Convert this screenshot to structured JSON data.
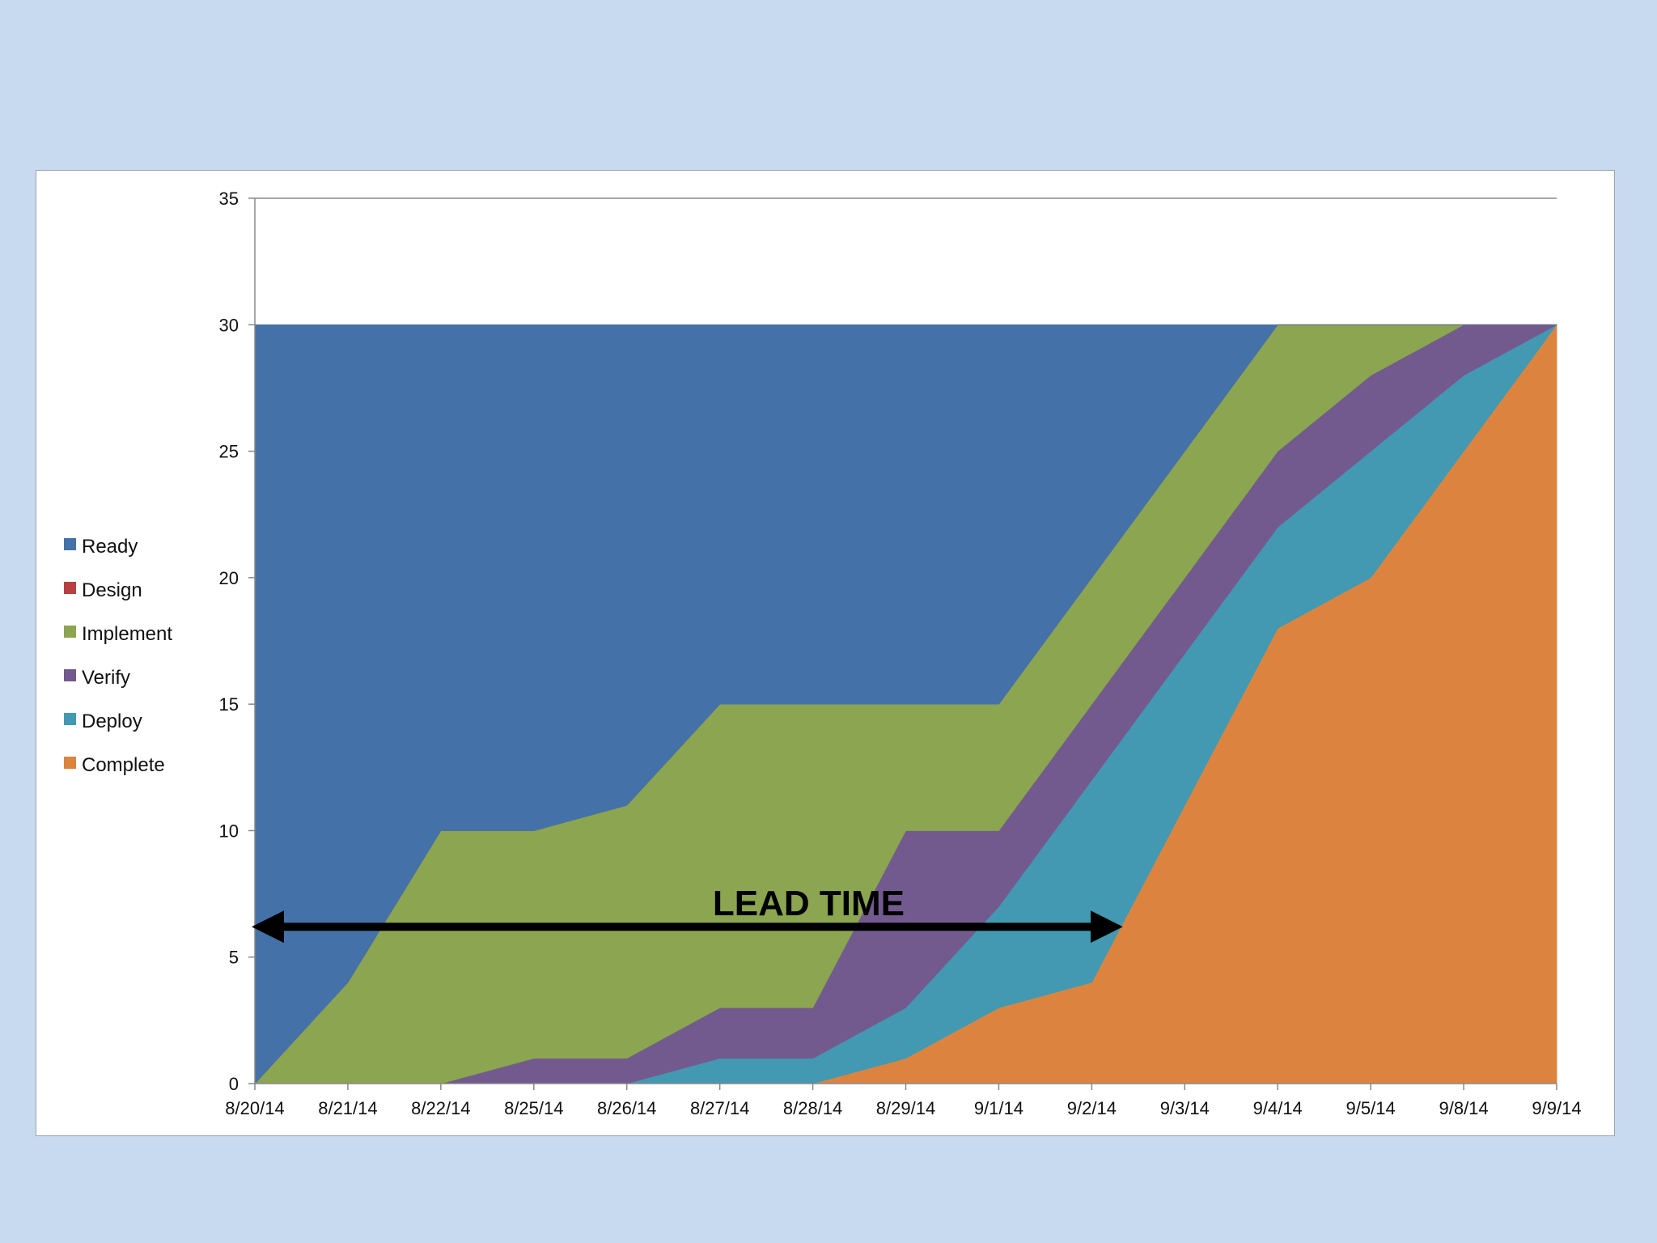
{
  "chart_data": {
    "type": "area",
    "stacked": true,
    "title": "",
    "xlabel": "",
    "ylabel": "",
    "categories": [
      "8/20/14",
      "8/21/14",
      "8/22/14",
      "8/25/14",
      "8/26/14",
      "8/27/14",
      "8/28/14",
      "8/29/14",
      "9/1/14",
      "9/2/14",
      "9/3/14",
      "9/4/14",
      "9/5/14",
      "9/8/14",
      "9/9/14"
    ],
    "ylim": [
      0,
      35
    ],
    "yticks": [
      0,
      5,
      10,
      15,
      20,
      25,
      30,
      35
    ],
    "series": [
      {
        "name": "Complete",
        "color": "#dc843f",
        "values": [
          0,
          0,
          0,
          0,
          0,
          0,
          0,
          1,
          3,
          4,
          11,
          18,
          20,
          25,
          30
        ]
      },
      {
        "name": "Deploy",
        "color": "#4299b1",
        "values": [
          0,
          0,
          0,
          0,
          0,
          1,
          1,
          2,
          4,
          8,
          6,
          4,
          5,
          3,
          0
        ]
      },
      {
        "name": "Verify",
        "color": "#735a8e",
        "values": [
          0,
          0,
          0,
          1,
          1,
          2,
          2,
          7,
          3,
          3,
          3,
          3,
          3,
          2,
          0
        ]
      },
      {
        "name": "Implement",
        "color": "#8ba551",
        "values": [
          0,
          4,
          10,
          9,
          10,
          12,
          12,
          5,
          5,
          5,
          5,
          5,
          2,
          0,
          0
        ]
      },
      {
        "name": "Design",
        "color": "#b84040",
        "values": [
          0,
          0,
          0,
          0,
          0,
          0,
          0,
          0,
          0,
          0,
          0,
          0,
          0,
          0,
          0
        ]
      },
      {
        "name": "Ready",
        "color": "#4472a8",
        "values": [
          30,
          26,
          20,
          20,
          19,
          15,
          15,
          15,
          15,
          10,
          5,
          0,
          0,
          0,
          0
        ]
      }
    ],
    "legend": {
      "position": "left",
      "order": [
        "Ready",
        "Design",
        "Implement",
        "Verify",
        "Deploy",
        "Complete"
      ]
    },
    "annotations": [
      {
        "text": "LEAD TIME",
        "type": "double-arrow",
        "x_start": "8/20/14",
        "x_end": "9/2/14",
        "x_end_offset": 0.3,
        "y": 6.2
      }
    ]
  }
}
